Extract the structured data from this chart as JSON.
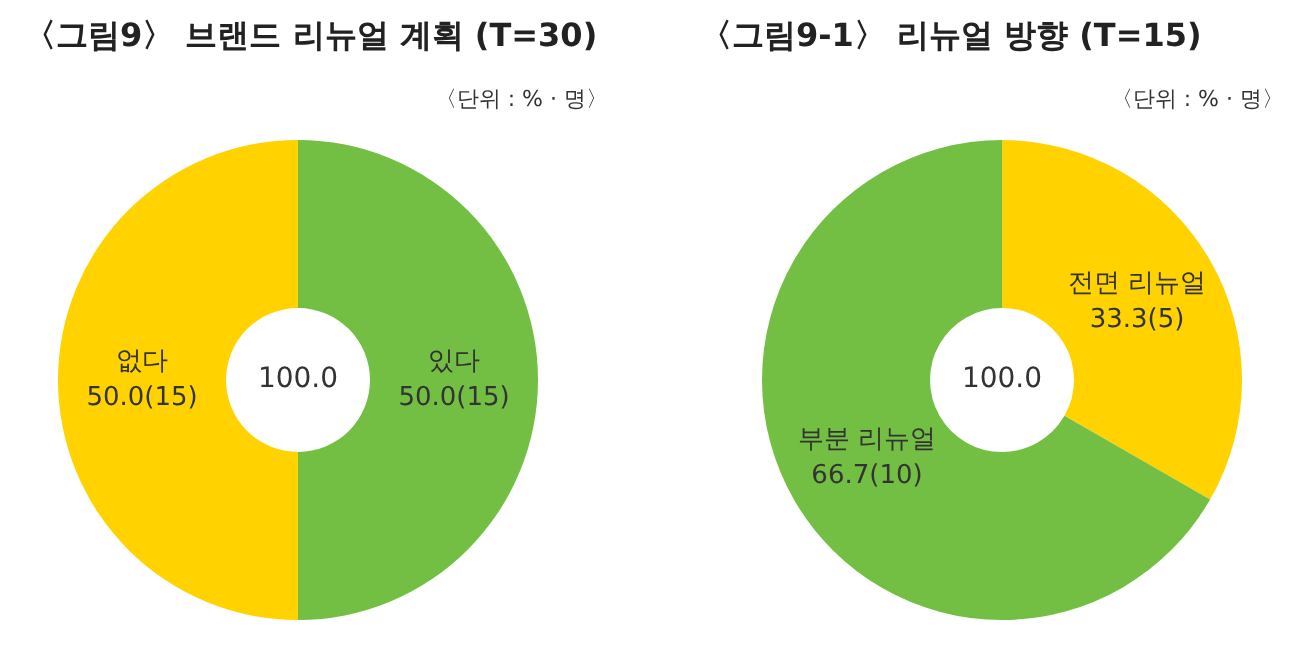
{
  "chart_data": [
    {
      "type": "donut",
      "title": "〈그림9〉 브랜드 리뉴얼 계획 (T=30)",
      "categories": [
        "있다",
        "없다"
      ],
      "values": [
        50,
        50
      ],
      "colors": [
        "#72bf44",
        "#ffd200"
      ],
      "value_labels": [
        "50.0(15)",
        "50.0(15)"
      ],
      "annotations": [
        "〈단위 : % · 명〉",
        "100.0"
      ],
      "legend": false
    },
    {
      "type": "donut",
      "title": "〈그림9-1〉 리뉴얼 방향 (T=15)",
      "categories": [
        "전면 리뉴얼",
        "부분 리뉴얼"
      ],
      "values": [
        33.3,
        66.7
      ],
      "colors": [
        "#ffd200",
        "#72bf44"
      ],
      "value_labels": [
        "33.3(5)",
        "66.7(10)"
      ],
      "annotations": [
        "〈단위 : % · 명〉",
        "100.0"
      ],
      "legend": false
    }
  ]
}
